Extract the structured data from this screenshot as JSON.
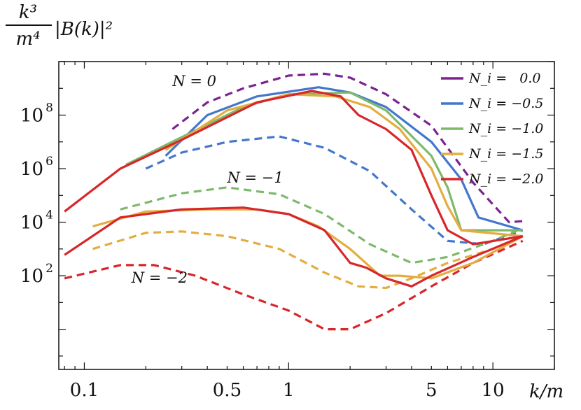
{
  "chart_data": {
    "type": "line",
    "xlabel": "k/m",
    "ylabel_top": "k³",
    "ylabel_bottom": "m⁴",
    "ylabel_rest": "|B(k)|²",
    "xscale": "log",
    "yscale": "log",
    "xlim": [
      0.075,
      20
    ],
    "ylim": [
      0.0316,
      10000000000.0
    ],
    "x_ticks": [
      {
        "value": 0.1,
        "label": "0.1"
      },
      {
        "value": 0.5,
        "label": "0.5"
      },
      {
        "value": 1,
        "label": "1"
      },
      {
        "value": 5,
        "label": "5"
      },
      {
        "value": 10,
        "label": "10"
      }
    ],
    "y_ticks": [
      {
        "value": 100,
        "label_base": "10",
        "label_exp": "2"
      },
      {
        "value": 10000,
        "label_base": "10",
        "label_exp": "4"
      },
      {
        "value": 1000000,
        "label_base": "10",
        "label_exp": "6"
      },
      {
        "value": 100000000,
        "label_base": "10",
        "label_exp": "8"
      }
    ],
    "legend_placement": "top-right",
    "legend": [
      {
        "label": "N_i =   0.0",
        "color": "#7b2391"
      },
      {
        "label": "N_i = −0.5",
        "color": "#4477cc"
      },
      {
        "label": "N_i = −1.0",
        "color": "#7db96b"
      },
      {
        "label": "N_i = −1.5",
        "color": "#e3ad3f"
      },
      {
        "label": "N_i = −2.0",
        "color": "#d8262a"
      }
    ],
    "annotations": [
      {
        "text": "N = 0",
        "x": 0.27,
        "y": 1200000000.0
      },
      {
        "text": "N = −1",
        "x": 0.5,
        "y": 300000.0
      },
      {
        "text": "N = −2",
        "x": 0.17,
        "y": 55
      }
    ],
    "series": [
      {
        "style": "dashed",
        "color": "#7b2391",
        "points": [
          [
            0.27,
            30000000.0
          ],
          [
            0.4,
            300000000.0
          ],
          [
            0.6,
            1000000000.0
          ],
          [
            1,
            3000000000.0
          ],
          [
            1.5,
            3500000000.0
          ],
          [
            2,
            2500000000.0
          ],
          [
            3,
            600000000.0
          ],
          [
            5,
            40000000.0
          ],
          [
            8,
            300000.0
          ],
          [
            12,
            10000.0
          ],
          [
            14,
            11000.0
          ]
        ]
      },
      {
        "style": "dashed",
        "color": "#4477cc",
        "points": [
          [
            0.2,
            1000000.0
          ],
          [
            0.3,
            4000000.0
          ],
          [
            0.5,
            10000000.0
          ],
          [
            0.9,
            16000000.0
          ],
          [
            1.5,
            6000000.0
          ],
          [
            2.5,
            800000.0
          ],
          [
            4,
            30000.0
          ],
          [
            6,
            2000.0
          ],
          [
            9,
            1500.0
          ],
          [
            14,
            5000.0
          ]
        ]
      },
      {
        "style": "dashed",
        "color": "#7db96b",
        "points": [
          [
            0.15,
            30000.0
          ],
          [
            0.3,
            120000.0
          ],
          [
            0.5,
            200000.0
          ],
          [
            0.9,
            110000.0
          ],
          [
            1.5,
            20000.0
          ],
          [
            2.5,
            1500.0
          ],
          [
            4,
            300
          ],
          [
            6,
            500
          ],
          [
            10,
            2000.0
          ],
          [
            14,
            6000.0
          ]
        ]
      },
      {
        "style": "dashed",
        "color": "#e3ad3f",
        "points": [
          [
            0.11,
            1000.0
          ],
          [
            0.2,
            4000.0
          ],
          [
            0.3,
            4500.0
          ],
          [
            0.5,
            3000.0
          ],
          [
            0.9,
            1000.0
          ],
          [
            1.5,
            130
          ],
          [
            2.2,
            40
          ],
          [
            3,
            35
          ],
          [
            4,
            80
          ],
          [
            6,
            300
          ],
          [
            10,
            1000.0
          ],
          [
            14,
            3000.0
          ]
        ]
      },
      {
        "style": "dashed",
        "color": "#d8262a",
        "points": [
          [
            0.08,
            80
          ],
          [
            0.15,
            250
          ],
          [
            0.22,
            250
          ],
          [
            0.35,
            100
          ],
          [
            0.6,
            20
          ],
          [
            1,
            5
          ],
          [
            1.5,
            1
          ],
          [
            2,
            1
          ],
          [
            3,
            4
          ],
          [
            5,
            40
          ],
          [
            8,
            300
          ],
          [
            14,
            2000.0
          ]
        ]
      },
      {
        "style": "solid",
        "color": "#4477cc",
        "points": [
          [
            0.25,
            3000000.0
          ],
          [
            0.4,
            100000000.0
          ],
          [
            0.7,
            500000000.0
          ],
          [
            1.4,
            1100000000.0
          ],
          [
            2,
            700000000.0
          ],
          [
            3,
            200000000.0
          ],
          [
            5,
            10000000.0
          ],
          [
            7,
            400000.0
          ],
          [
            8.5,
            15000.0
          ],
          [
            14,
            5000.0
          ]
        ]
      },
      {
        "style": "solid",
        "color": "#7db96b",
        "points": [
          [
            0.16,
            1400000.0
          ],
          [
            0.3,
            15000000.0
          ],
          [
            0.6,
            200000000.0
          ],
          [
            1,
            600000000.0
          ],
          [
            2,
            700000000.0
          ],
          [
            3,
            150000000.0
          ],
          [
            5,
            3000000.0
          ],
          [
            6,
            200000.0
          ],
          [
            7,
            5000.0
          ],
          [
            14,
            5000.0
          ]
        ]
      },
      {
        "style": "solid",
        "color": "#e3ad3f",
        "points": [
          [
            0.25,
            5000000.0
          ],
          [
            0.5,
            150000000.0
          ],
          [
            1,
            600000000.0
          ],
          [
            1.7,
            500000000.0
          ],
          [
            2.5,
            200000000.0
          ],
          [
            3.5,
            30000000.0
          ],
          [
            5,
            1000000.0
          ],
          [
            6,
            40000.0
          ],
          [
            7,
            5000.0
          ],
          [
            14,
            3000.0
          ]
        ]
      },
      {
        "style": "solid",
        "color": "#d8262a",
        "points": [
          [
            0.08,
            25000.0
          ],
          [
            0.15,
            1000000.0
          ],
          [
            0.3,
            12000000.0
          ],
          [
            0.7,
            300000000.0
          ],
          [
            1.3,
            800000000.0
          ],
          [
            1.8,
            500000000.0
          ],
          [
            2.2,
            100000000.0
          ],
          [
            3,
            30000000.0
          ],
          [
            4,
            5000000.0
          ],
          [
            5,
            100000.0
          ],
          [
            6,
            5000.0
          ],
          [
            8,
            1500.0
          ],
          [
            14,
            3000.0
          ]
        ]
      },
      {
        "style": "solid",
        "color": "#e3ad3f",
        "points": [
          [
            0.11,
            7000.0
          ],
          [
            0.2,
            25000.0
          ],
          [
            0.4,
            30000.0
          ],
          [
            0.7,
            30000.0
          ],
          [
            1,
            20000.0
          ],
          [
            1.4,
            7000.0
          ],
          [
            2,
            1000.0
          ],
          [
            2.8,
            100
          ],
          [
            3.5,
            100
          ],
          [
            5,
            80
          ],
          [
            8,
            300
          ],
          [
            14,
            3000.0
          ]
        ]
      },
      {
        "style": "solid",
        "color": "#d8262a",
        "points": [
          [
            0.08,
            600
          ],
          [
            0.15,
            15000.0
          ],
          [
            0.3,
            30000.0
          ],
          [
            0.6,
            35000.0
          ],
          [
            1,
            20000.0
          ],
          [
            1.5,
            5000.0
          ],
          [
            2,
            300
          ],
          [
            2.4,
            200
          ],
          [
            3,
            80
          ],
          [
            4,
            40
          ],
          [
            5,
            100
          ],
          [
            8,
            500
          ],
          [
            14,
            3000.0
          ]
        ]
      }
    ]
  }
}
